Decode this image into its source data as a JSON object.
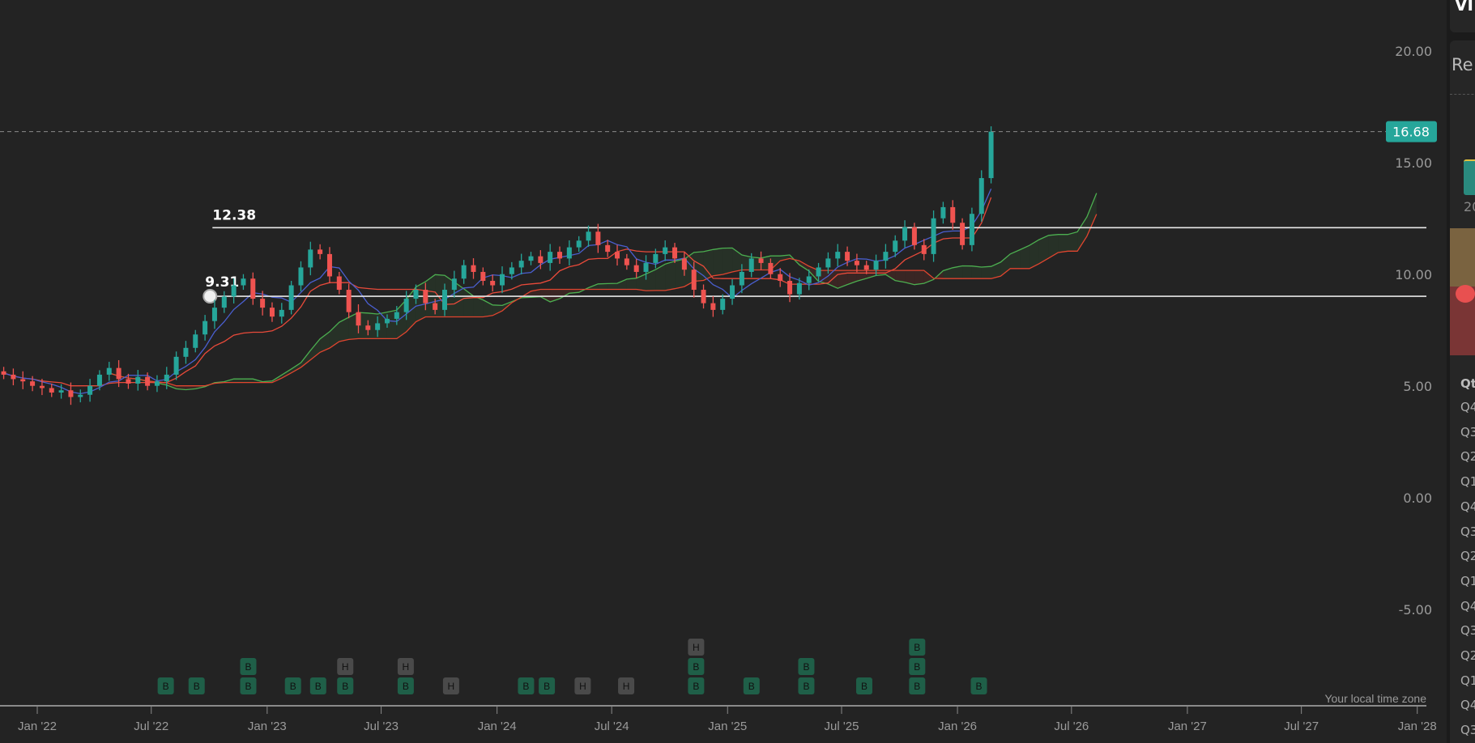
{
  "chart_data": {
    "type": "candlestick",
    "first_period": "2021-11",
    "period": "half-month",
    "close": [
      5.8,
      5.6,
      5.5,
      5.3,
      5.2,
      5.0,
      5.1,
      4.8,
      4.9,
      5.3,
      5.8,
      6.1,
      5.6,
      5.4,
      5.7,
      5.3,
      5.5,
      5.8,
      6.6,
      7.0,
      7.6,
      8.2,
      8.8,
      9.3,
      9.8,
      10.1,
      9.2,
      8.8,
      8.4,
      8.7,
      9.8,
      10.6,
      11.4,
      11.2,
      10.2,
      9.6,
      8.6,
      8.0,
      7.8,
      8.1,
      8.3,
      8.6,
      9.2,
      9.6,
      9.0,
      8.7,
      9.6,
      10.1,
      10.7,
      10.4,
      10.0,
      9.8,
      10.3,
      10.6,
      10.9,
      11.1,
      10.8,
      11.3,
      11.0,
      11.5,
      11.8,
      12.2,
      11.6,
      11.3,
      11.0,
      10.7,
      10.4,
      10.8,
      11.2,
      11.5,
      11.0,
      10.5,
      9.6,
      9.0,
      8.7,
      9.2,
      9.8,
      10.4,
      11.0,
      10.8,
      10.3,
      10.0,
      9.4,
      9.9,
      10.2,
      10.6,
      11.0,
      11.3,
      10.9,
      10.7,
      10.5,
      10.9,
      11.3,
      11.8,
      12.4,
      11.6,
      11.2,
      12.8,
      13.3,
      12.6,
      11.6,
      13.0,
      14.6,
      16.68
    ],
    "up_color": "#26a69a",
    "down_color": "#ef5350",
    "indicators": {
      "conversion_color": "#4a5fd0",
      "base_color": "#e84a3a",
      "span_a_color": "#4caf50",
      "span_b_color": "#e0452f"
    },
    "y_ticks": [
      "20.00",
      "15.00",
      "10.00",
      "5.00",
      "0.00",
      "-5.00"
    ],
    "y_tick_values": [
      20,
      15,
      10,
      5,
      0,
      -5
    ],
    "x_ticks": [
      {
        "label": "Jan '22",
        "date": "2022-01-01"
      },
      {
        "label": "Jul '22",
        "date": "2022-07-01"
      },
      {
        "label": "Jan '23",
        "date": "2023-01-01"
      },
      {
        "label": "Jul '23",
        "date": "2023-07-01"
      },
      {
        "label": "Jan '24",
        "date": "2024-01-01"
      },
      {
        "label": "Jul '24",
        "date": "2024-07-01"
      },
      {
        "label": "Jan '25",
        "date": "2025-01-01"
      },
      {
        "label": "Jul '25",
        "date": "2025-07-01"
      },
      {
        "label": "Jan '26",
        "date": "2026-01-01"
      },
      {
        "label": "Jul '26",
        "date": "2026-07-01"
      },
      {
        "label": "Jan '27",
        "date": "2027-01-01"
      },
      {
        "label": "Jul '27",
        "date": "2027-07-01"
      },
      {
        "label": "Jan '28",
        "date": "2028-01-01"
      }
    ],
    "last_price": "16.68",
    "last_price_value": 16.68,
    "last_price_color": "#26a69a",
    "levels": [
      {
        "label": "12.38",
        "value": 12.38,
        "start": "2022-10-01"
      },
      {
        "label": "9.31",
        "value": 9.31,
        "start": "2022-10-01"
      }
    ],
    "markers": [
      {
        "date": "2022-07-24",
        "stack": [
          "B"
        ]
      },
      {
        "date": "2022-09-11",
        "stack": [
          "B"
        ]
      },
      {
        "date": "2022-12-02",
        "stack": [
          "B",
          "B"
        ]
      },
      {
        "date": "2023-02-11",
        "stack": [
          "B"
        ]
      },
      {
        "date": "2023-03-23",
        "stack": [
          "B"
        ]
      },
      {
        "date": "2023-05-05",
        "stack": [
          "B",
          "H"
        ]
      },
      {
        "date": "2023-08-09",
        "stack": [
          "B",
          "H"
        ]
      },
      {
        "date": "2023-10-20",
        "stack": [
          "H"
        ]
      },
      {
        "date": "2024-02-16",
        "stack": [
          "B"
        ]
      },
      {
        "date": "2024-03-20",
        "stack": [
          "B"
        ]
      },
      {
        "date": "2024-05-16",
        "stack": [
          "H"
        ]
      },
      {
        "date": "2024-07-24",
        "stack": [
          "H"
        ]
      },
      {
        "date": "2024-11-12",
        "stack": [
          "B",
          "B",
          "H"
        ]
      },
      {
        "date": "2025-02-08",
        "stack": [
          "B"
        ]
      },
      {
        "date": "2025-05-06",
        "stack": [
          "B",
          "B"
        ]
      },
      {
        "date": "2025-08-06",
        "stack": [
          "B"
        ]
      },
      {
        "date": "2025-10-29",
        "stack": [
          "B",
          "B",
          "B"
        ]
      },
      {
        "date": "2026-02-04",
        "stack": [
          "B"
        ]
      }
    ],
    "marker_colors": {
      "B": "#1f5f48",
      "H": "#4a4a4a"
    },
    "timezone_note": "Your local time zone"
  },
  "sidebar": {
    "title_fragment": "VI",
    "panel_title_fragment": "Re",
    "year_fragment": "20",
    "table_header_fragment": "Qt",
    "quarters": [
      "Q4",
      "Q3",
      "Q2",
      "Q1",
      "Q4",
      "Q3",
      "Q2",
      "Q1",
      "Q4",
      "Q3",
      "Q2",
      "Q1",
      "Q4",
      "Q3"
    ]
  }
}
